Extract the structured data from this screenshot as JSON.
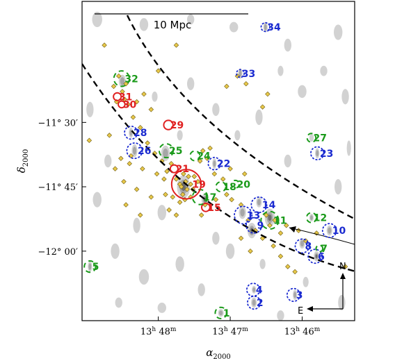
{
  "chart_data": {
    "type": "sky-map",
    "xlabel_sym": "α",
    "xlabel_sub": "2000",
    "ylabel_sym": "δ",
    "ylabel_sub": "2000",
    "x_ticks": [
      {
        "ra_min": 48,
        "label_h": "13",
        "label_m": "48"
      },
      {
        "ra_min": 47,
        "label_h": "13",
        "label_m": "47"
      },
      {
        "ra_min": 46,
        "label_h": "13",
        "label_m": "46"
      }
    ],
    "y_ticks": [
      {
        "dec": -11.5,
        "label": "−11° 30′"
      },
      {
        "dec": -11.75,
        "label": "−11° 45′"
      },
      {
        "dec": -12.0,
        "label": "−12° 00′"
      }
    ],
    "xlim_ra_min": [
      49.06,
      45.27
    ],
    "ylim_dec": [
      -12.27,
      -11.03
    ],
    "scale_bar_label": "10 Mpc",
    "compass": {
      "north": "N",
      "east": "E"
    },
    "colors": {
      "red": "#e02020",
      "green": "#1a9a1a",
      "blue": "#1a2ad0",
      "member": "#e8c84a",
      "contour_light": "#d2d2d2",
      "contour_dark": "#6e6e6e"
    },
    "groups": [
      {
        "id": "1",
        "color": "green",
        "style": "dash",
        "ra": 47.13,
        "dec": -12.24,
        "r": 0.022
      },
      {
        "id": "2",
        "color": "blue",
        "style": "dot",
        "ra": 46.67,
        "dec": -12.2,
        "r": 0.025
      },
      {
        "id": "3",
        "color": "blue",
        "style": "dot",
        "ra": 46.12,
        "dec": -12.17,
        "r": 0.025
      },
      {
        "id": "4",
        "color": "blue",
        "style": "dot",
        "ra": 46.68,
        "dec": -12.15,
        "r": 0.025
      },
      {
        "id": "5",
        "color": "green",
        "style": "dash",
        "ra": 48.95,
        "dec": -12.06,
        "r": 0.022
      },
      {
        "id": "6",
        "color": "blue",
        "style": "dot",
        "ra": 45.82,
        "dec": -12.02,
        "r": 0.027
      },
      {
        "id": "7",
        "color": "green",
        "style": "dash",
        "ra": 45.76,
        "dec": -11.99,
        "r": 0.013
      },
      {
        "id": "8",
        "color": "blue",
        "style": "dot",
        "ra": 46.0,
        "dec": -11.98,
        "r": 0.027
      },
      {
        "id": "9",
        "color": "blue",
        "style": "dot",
        "ra": 46.67,
        "dec": -11.9,
        "r": 0.03
      },
      {
        "id": "10",
        "color": "blue",
        "style": "dot",
        "ra": 45.62,
        "dec": -11.92,
        "r": 0.027
      },
      {
        "id": "11",
        "color": "green",
        "style": "dash",
        "ra": 46.45,
        "dec": -11.88,
        "r": 0.034
      },
      {
        "id": "12",
        "color": "green",
        "style": "dash",
        "ra": 45.87,
        "dec": -11.87,
        "r": 0.019
      },
      {
        "id": "13",
        "color": "blue",
        "style": "dot",
        "ra": 46.82,
        "dec": -11.86,
        "r": 0.034
      },
      {
        "id": "14",
        "color": "blue",
        "style": "dot",
        "ra": 46.6,
        "dec": -11.82,
        "r": 0.03
      },
      {
        "id": "15",
        "color": "red",
        "style": "solid",
        "ra": 47.34,
        "dec": -11.83,
        "r": 0.016
      },
      {
        "id": "17",
        "color": "green",
        "style": "dash",
        "ra": 47.42,
        "dec": -11.79,
        "r": 0.029
      },
      {
        "id": "18",
        "color": "green",
        "style": "dash",
        "ra": 47.13,
        "dec": -11.75,
        "r": 0.019
      },
      {
        "id": "19",
        "color": "red",
        "style": "solid",
        "ra": 47.61,
        "dec": -11.74,
        "r": 0.057
      },
      {
        "id": "20",
        "color": "green",
        "style": "dash",
        "ra": 46.93,
        "dec": -11.74,
        "r": 0.015
      },
      {
        "id": "21",
        "color": "red",
        "style": "solid",
        "ra": 47.78,
        "dec": -11.68,
        "r": 0.015
      },
      {
        "id": "22",
        "color": "blue",
        "style": "dot",
        "ra": 47.22,
        "dec": -11.66,
        "r": 0.024
      },
      {
        "id": "23",
        "color": "blue",
        "style": "dot",
        "ra": 45.79,
        "dec": -11.62,
        "r": 0.025
      },
      {
        "id": "24",
        "color": "green",
        "style": "dash",
        "ra": 47.49,
        "dec": -11.63,
        "r": 0.019
      },
      {
        "id": "25",
        "color": "green",
        "style": "dash",
        "ra": 47.89,
        "dec": -11.61,
        "r": 0.027
      },
      {
        "id": "26",
        "color": "blue",
        "style": "dot",
        "ra": 48.33,
        "dec": -11.61,
        "r": 0.03
      },
      {
        "id": "27",
        "color": "green",
        "style": "dash",
        "ra": 45.87,
        "dec": -11.56,
        "r": 0.017
      },
      {
        "id": "28",
        "color": "blue",
        "style": "dot",
        "ra": 48.38,
        "dec": -11.54,
        "r": 0.025
      },
      {
        "id": "29",
        "color": "red",
        "style": "solid",
        "ra": 47.86,
        "dec": -11.51,
        "r": 0.018
      },
      {
        "id": "30",
        "color": "red",
        "style": "solid",
        "ra": 48.51,
        "dec": -11.43,
        "r": 0.013
      },
      {
        "id": "31",
        "color": "red",
        "style": "solid",
        "ra": 48.57,
        "dec": -11.4,
        "r": 0.015
      },
      {
        "id": "32",
        "color": "green",
        "style": "dash",
        "ra": 48.51,
        "dec": -11.33,
        "r": 0.03
      },
      {
        "id": "33",
        "color": "blue",
        "style": "dot",
        "ra": 46.86,
        "dec": -11.31,
        "r": 0.015
      },
      {
        "id": "34",
        "color": "blue",
        "style": "dot",
        "ra": 46.51,
        "dec": -11.13,
        "r": 0.017
      }
    ],
    "member_galaxies": [
      [
        48.55,
        -11.32
      ],
      [
        48.45,
        -11.35
      ],
      [
        48.62,
        -11.36
      ],
      [
        48.5,
        -11.38
      ],
      [
        48.58,
        -11.42
      ],
      [
        48.47,
        -11.41
      ],
      [
        48.42,
        -11.43
      ],
      [
        48.3,
        -11.42
      ],
      [
        48.2,
        -11.39
      ],
      [
        48.35,
        -11.48
      ],
      [
        48.25,
        -11.52
      ],
      [
        48.1,
        -11.45
      ],
      [
        48.96,
        -11.57
      ],
      [
        48.68,
        -11.55
      ],
      [
        48.15,
        -11.58
      ],
      [
        48.05,
        -11.62
      ],
      [
        47.95,
        -11.65
      ],
      [
        47.88,
        -11.69
      ],
      [
        47.92,
        -11.72
      ],
      [
        48.02,
        -11.7
      ],
      [
        47.82,
        -11.66
      ],
      [
        47.75,
        -11.72
      ],
      [
        47.7,
        -11.74
      ],
      [
        47.65,
        -11.7
      ],
      [
        47.62,
        -11.73
      ],
      [
        47.6,
        -11.76
      ],
      [
        47.58,
        -11.71
      ],
      [
        47.55,
        -11.74
      ],
      [
        47.66,
        -11.78
      ],
      [
        47.63,
        -11.8
      ],
      [
        47.55,
        -11.79
      ],
      [
        47.52,
        -11.76
      ],
      [
        47.68,
        -11.75
      ],
      [
        47.5,
        -11.71
      ],
      [
        47.45,
        -11.73
      ],
      [
        47.7,
        -11.81
      ],
      [
        47.8,
        -11.79
      ],
      [
        47.9,
        -11.78
      ],
      [
        47.85,
        -11.84
      ],
      [
        47.75,
        -11.86
      ],
      [
        48.1,
        -11.79
      ],
      [
        48.3,
        -11.76
      ],
      [
        48.25,
        -11.86
      ],
      [
        48.45,
        -11.82
      ],
      [
        48.48,
        -11.73
      ],
      [
        48.6,
        -11.68
      ],
      [
        48.52,
        -11.64
      ],
      [
        48.38,
        -11.63
      ],
      [
        47.42,
        -11.65
      ],
      [
        47.38,
        -11.61
      ],
      [
        47.32,
        -11.64
      ],
      [
        47.28,
        -11.6
      ],
      [
        47.22,
        -11.7
      ],
      [
        47.35,
        -11.82
      ],
      [
        47.4,
        -11.86
      ],
      [
        47.2,
        -11.8
      ],
      [
        47.05,
        -11.78
      ],
      [
        46.98,
        -11.8
      ],
      [
        46.85,
        -11.82
      ],
      [
        46.75,
        -11.88
      ],
      [
        46.65,
        -11.92
      ],
      [
        46.55,
        -11.95
      ],
      [
        46.4,
        -11.98
      ],
      [
        46.3,
        -12.02
      ],
      [
        46.2,
        -12.06
      ],
      [
        46.1,
        -12.08
      ],
      [
        46.45,
        -11.9
      ],
      [
        46.5,
        -11.86
      ],
      [
        46.38,
        -11.88
      ],
      [
        46.3,
        -11.93
      ],
      [
        46.22,
        -11.9
      ],
      [
        46.05,
        -11.92
      ],
      [
        45.95,
        -11.96
      ],
      [
        45.8,
        -11.93
      ],
      [
        45.4,
        -12.06
      ],
      [
        46.85,
        -11.95
      ],
      [
        46.72,
        -12.0
      ],
      [
        46.8,
        -11.7
      ],
      [
        47.0,
        -11.68
      ],
      [
        47.1,
        -11.72
      ],
      [
        46.9,
        -11.32
      ],
      [
        47.05,
        -11.36
      ],
      [
        46.55,
        -11.44
      ],
      [
        46.48,
        -11.39
      ],
      [
        48.75,
        -11.2
      ],
      [
        48.0,
        -11.3
      ],
      [
        47.75,
        -11.2
      ],
      [
        46.78,
        -11.35
      ],
      [
        48.4,
        -11.66
      ],
      [
        48.22,
        -11.68
      ]
    ],
    "contour_blobs": [
      [
        47.65,
        -11.75,
        0.09,
        0.045,
        0.9
      ],
      [
        46.45,
        -11.87,
        0.07,
        0.035,
        0.9
      ],
      [
        46.7,
        -11.92,
        0.06,
        0.03,
        0.8
      ],
      [
        47.35,
        -11.8,
        0.05,
        0.025,
        0.7
      ],
      [
        47.9,
        -11.62,
        0.06,
        0.03,
        0.6
      ],
      [
        48.5,
        -11.34,
        0.05,
        0.025,
        0.6
      ],
      [
        45.8,
        -12.02,
        0.04,
        0.02,
        0.7
      ],
      [
        46.0,
        -11.97,
        0.04,
        0.02,
        0.6
      ],
      [
        46.1,
        -12.17,
        0.03,
        0.02,
        0.6
      ],
      [
        46.67,
        -12.2,
        0.04,
        0.02,
        0.6
      ],
      [
        46.67,
        -12.15,
        0.03,
        0.015,
        0.5
      ],
      [
        45.62,
        -11.92,
        0.04,
        0.02,
        0.6
      ],
      [
        46.83,
        -11.85,
        0.05,
        0.025,
        0.6
      ],
      [
        46.6,
        -11.81,
        0.04,
        0.02,
        0.6
      ],
      [
        47.22,
        -11.66,
        0.03,
        0.02,
        0.5
      ],
      [
        45.79,
        -11.62,
        0.03,
        0.02,
        0.5
      ],
      [
        48.33,
        -11.61,
        0.04,
        0.025,
        0.5
      ],
      [
        48.38,
        -11.54,
        0.03,
        0.02,
        0.5
      ],
      [
        46.86,
        -11.31,
        0.03,
        0.02,
        0.5
      ],
      [
        46.51,
        -11.13,
        0.03,
        0.02,
        0.5
      ],
      [
        48.95,
        -12.06,
        0.03,
        0.02,
        0.5
      ],
      [
        47.13,
        -12.24,
        0.04,
        0.015,
        0.5
      ],
      [
        45.87,
        -11.56,
        0.03,
        0.015,
        0.4
      ],
      [
        45.87,
        -11.87,
        0.03,
        0.015,
        0.5
      ],
      [
        48.85,
        -11.1,
        0.07,
        0.03,
        0.3
      ],
      [
        48.2,
        -11.12,
        0.06,
        0.025,
        0.3
      ],
      [
        47.55,
        -11.1,
        0.05,
        0.02,
        0.3
      ],
      [
        46.95,
        -11.13,
        0.06,
        0.02,
        0.3
      ],
      [
        46.2,
        -11.2,
        0.05,
        0.025,
        0.3
      ],
      [
        45.5,
        -11.15,
        0.06,
        0.03,
        0.3
      ],
      [
        45.4,
        -11.4,
        0.05,
        0.03,
        0.3
      ],
      [
        46.0,
        -11.38,
        0.06,
        0.025,
        0.3
      ],
      [
        46.6,
        -11.48,
        0.05,
        0.03,
        0.3
      ],
      [
        47.2,
        -11.45,
        0.05,
        0.025,
        0.3
      ],
      [
        48.95,
        -11.45,
        0.05,
        0.03,
        0.3
      ],
      [
        48.85,
        -11.8,
        0.06,
        0.03,
        0.3
      ],
      [
        48.6,
        -12.0,
        0.06,
        0.03,
        0.3
      ],
      [
        48.2,
        -12.1,
        0.07,
        0.03,
        0.3
      ],
      [
        47.7,
        -12.05,
        0.06,
        0.03,
        0.3
      ],
      [
        47.4,
        -12.15,
        0.05,
        0.025,
        0.3
      ],
      [
        46.3,
        -12.25,
        0.05,
        0.02,
        0.3
      ],
      [
        45.45,
        -12.2,
        0.05,
        0.03,
        0.3
      ],
      [
        45.5,
        -11.75,
        0.05,
        0.03,
        0.3
      ],
      [
        46.2,
        -11.65,
        0.05,
        0.025,
        0.3
      ],
      [
        48.7,
        -11.65,
        0.05,
        0.025,
        0.3
      ],
      [
        47.95,
        -11.85,
        0.06,
        0.03,
        0.35
      ],
      [
        47.0,
        -12.0,
        0.06,
        0.03,
        0.3
      ],
      [
        45.95,
        -12.12,
        0.04,
        0.02,
        0.35
      ],
      [
        47.95,
        -12.22,
        0.06,
        0.02,
        0.3
      ],
      [
        48.55,
        -12.2,
        0.05,
        0.02,
        0.3
      ],
      [
        47.55,
        -11.35,
        0.05,
        0.025,
        0.3
      ],
      [
        48.05,
        -11.4,
        0.04,
        0.02,
        0.3
      ],
      [
        46.3,
        -11.3,
        0.04,
        0.02,
        0.3
      ],
      [
        45.7,
        -11.3,
        0.05,
        0.02,
        0.3
      ],
      [
        45.35,
        -11.6,
        0.03,
        0.03,
        0.3
      ],
      [
        47.2,
        -11.95,
        0.05,
        0.025,
        0.4
      ],
      [
        46.55,
        -12.05,
        0.04,
        0.02,
        0.35
      ],
      [
        48.3,
        -11.9,
        0.05,
        0.03,
        0.3
      ],
      [
        47.7,
        -11.55,
        0.04,
        0.02,
        0.3
      ],
      [
        46.9,
        -11.55,
        0.04,
        0.02,
        0.3
      ]
    ]
  }
}
